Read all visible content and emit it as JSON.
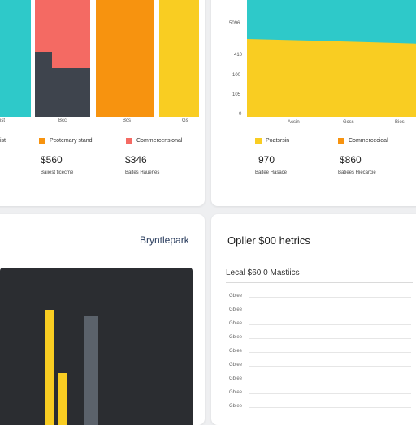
{
  "colors": {
    "teal": "#2ec9c9",
    "coral": "#f46a63",
    "slate": "#3e444d",
    "orange": "#f7930f",
    "yellow": "#f9cd22",
    "dark": "#2b2d31"
  },
  "top_left": {
    "x_ticks": [
      "ist",
      "Bcc",
      "Bcs",
      "Gs"
    ],
    "legend": [
      {
        "label": "Pcotemary stand",
        "color": "#f7930f"
      },
      {
        "label": "Commercensional",
        "color": "#f46a63"
      }
    ],
    "stats": [
      {
        "value": "$560",
        "label": "Baiiest ticecme"
      },
      {
        "value": "$346",
        "label": "Baites Hauenes"
      }
    ]
  },
  "top_right": {
    "y_ticks": [
      "5096",
      "410",
      "100",
      "105",
      "0"
    ],
    "x_ticks": [
      "Acsin",
      "Gcss",
      "Bios"
    ],
    "legend": [
      {
        "label": "Poatsrsin",
        "color": "#f9cd22"
      },
      {
        "label": "Commercecieal",
        "color": "#f7930f"
      }
    ],
    "stats": [
      {
        "value": "970",
        "label": "Baitee Hasace"
      },
      {
        "value": "$860",
        "label": "Batiees Hiecarcie"
      }
    ]
  },
  "bottom_left": {
    "title": "Bryntlepark"
  },
  "bottom_right": {
    "title": "Opller $00 hetrics",
    "subtitle": "Lecal  $60 0 Mastiics",
    "rows": [
      "Gblee",
      "Gblee",
      "Gblee",
      "Gblee",
      "Gblee",
      "Gblee",
      "Gblee",
      "Gblee",
      "Gblee"
    ]
  }
}
